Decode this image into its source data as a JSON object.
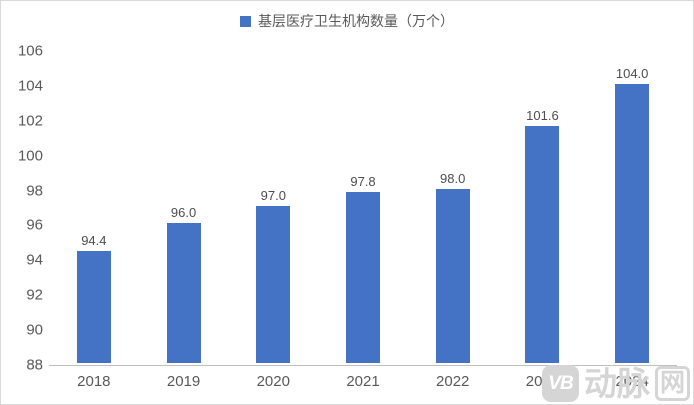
{
  "chart_data": {
    "type": "bar",
    "legend": "基层医疗卫生机构数量（万个）",
    "categories": [
      "2018",
      "2019",
      "2020",
      "2021",
      "2022",
      "2023",
      "2024"
    ],
    "values": [
      94.4,
      96.0,
      97.0,
      97.8,
      98.0,
      101.6,
      104.0
    ],
    "data_labels": [
      "94.4",
      "96.0",
      "97.0",
      "97.8",
      "98.0",
      "101.6",
      "104.0"
    ],
    "xlabel": "",
    "ylabel": "",
    "ylim": [
      88,
      106
    ],
    "yticks": [
      88,
      90,
      92,
      94,
      96,
      98,
      100,
      102,
      104,
      106
    ],
    "grid": false,
    "legend_position": "top-center",
    "bar_color": "#4472c4",
    "axis_line_color": "#bfbfbf",
    "tick_label_color": "#595959",
    "data_label_color": "#4d4d4d"
  },
  "watermark": {
    "logo_text": "VB",
    "brand_text": "动脉",
    "boxed_text": "网"
  }
}
